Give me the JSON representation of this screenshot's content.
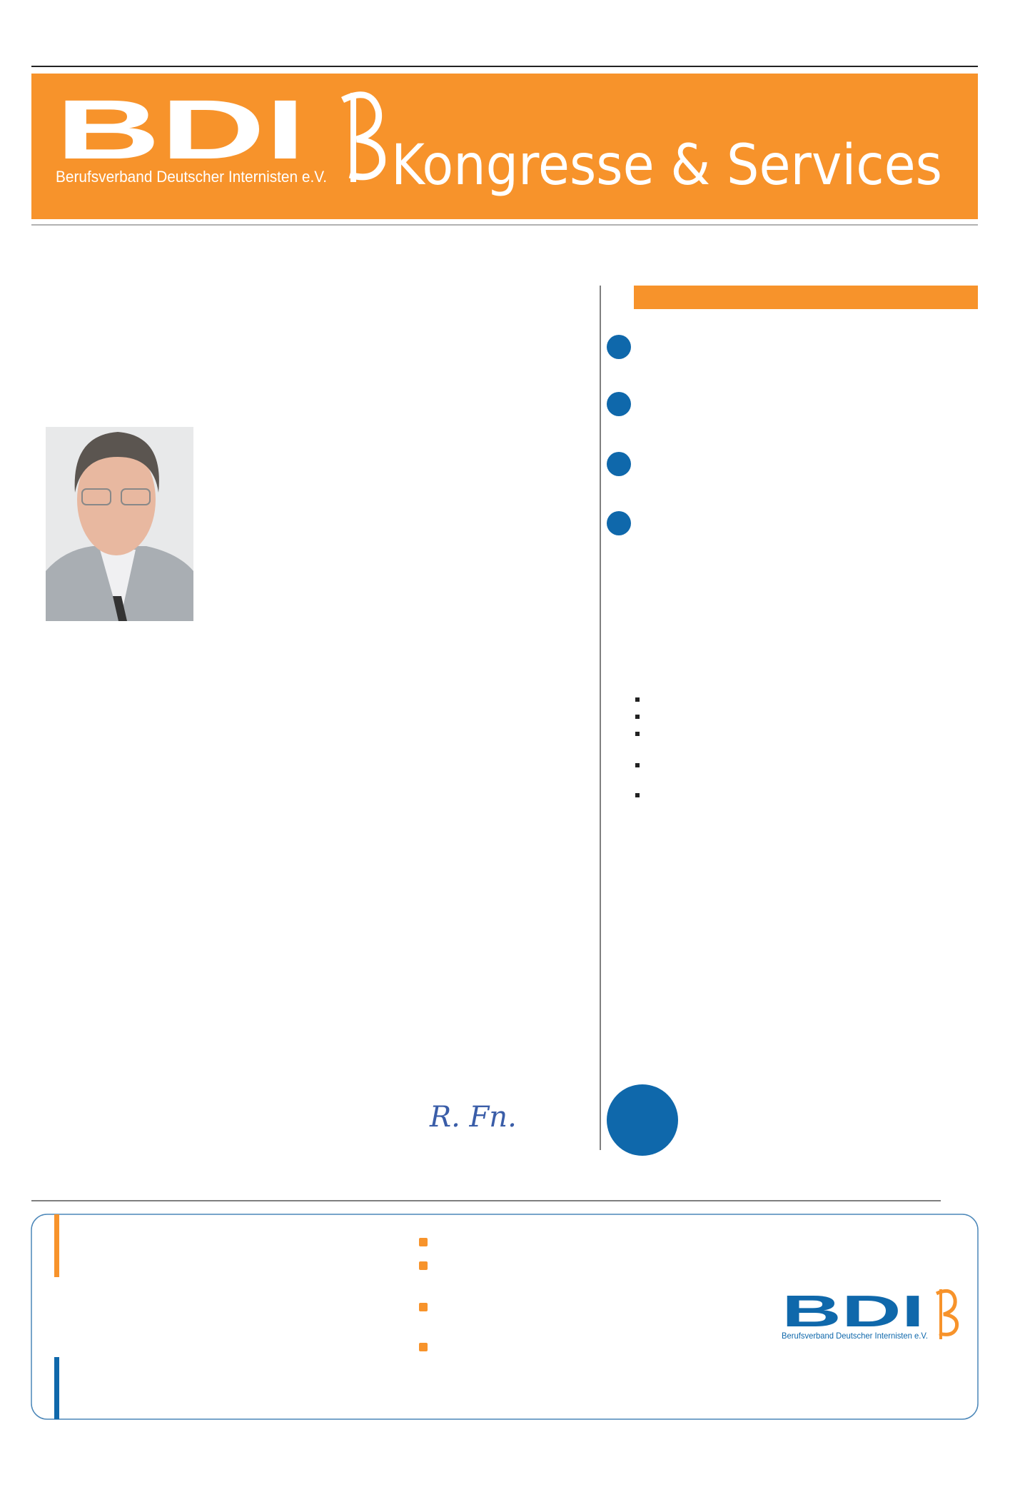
{
  "header": {
    "logo": "BDI",
    "organization": "Berufsverband Deutscher Internisten e.V.",
    "tagline": "Kongresse & Services"
  },
  "letter": {
    "signature": "R. Fn."
  },
  "footer": {
    "logo": "BDI",
    "organization": "Berufsverband Deutscher Internisten e.V."
  }
}
